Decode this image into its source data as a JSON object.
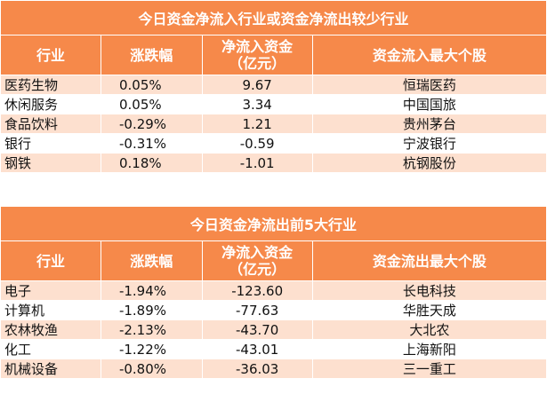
{
  "table1": {
    "title": "今日资金净流入行业或资金净流出较少行业",
    "headers": [
      "行业",
      "涨跌幅",
      "净流入资金\n（亿元）",
      "资金流入最大个股"
    ],
    "rows": [
      [
        "医药生物",
        "0.05%",
        "9.67",
        "恒瑞医药"
      ],
      [
        "休闲服务",
        "0.05%",
        "3.34",
        "中国国旅"
      ],
      [
        "食品饮料",
        "-0.29%",
        "1.21",
        "贵州茅台"
      ],
      [
        "银行",
        "-0.31%",
        "-0.59",
        "宁波银行"
      ],
      [
        "钢铁",
        "0.18%",
        "-1.01",
        "杭钢股份"
      ]
    ]
  },
  "table2": {
    "title": "今日资金净流出前5大行业",
    "headers": [
      "行业",
      "涨跌幅",
      "净流入资金\n（亿元）",
      "资金流出最大个股"
    ],
    "rows": [
      [
        "电子",
        "-1.94%",
        "-123.60",
        "长电科技"
      ],
      [
        "计算机",
        "-1.89%",
        "-77.63",
        "华胜天成"
      ],
      [
        "农林牧渔",
        "-2.13%",
        "-43.70",
        "大北农"
      ],
      [
        "化工",
        "-1.22%",
        "-43.01",
        "上海新阳"
      ],
      [
        "机械设备",
        "-0.80%",
        "-36.03",
        "三一重工"
      ]
    ]
  }
}
